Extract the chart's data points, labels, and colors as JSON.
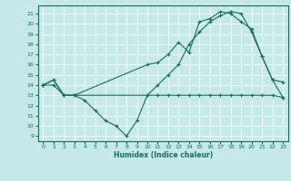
{
  "xlabel": "Humidex (Indice chaleur)",
  "xlim": [
    -0.5,
    23.5
  ],
  "ylim": [
    8.5,
    21.8
  ],
  "yticks": [
    9,
    10,
    11,
    12,
    13,
    14,
    15,
    16,
    17,
    18,
    19,
    20,
    21
  ],
  "xticks": [
    0,
    1,
    2,
    3,
    4,
    5,
    6,
    7,
    8,
    9,
    10,
    11,
    12,
    13,
    14,
    15,
    16,
    17,
    18,
    19,
    20,
    21,
    22,
    23
  ],
  "bg_color": "#c5e8e8",
  "line_color": "#1a6b5a",
  "series": [
    {
      "x": [
        0,
        1,
        2,
        3,
        4,
        5,
        6,
        7,
        8,
        9,
        10,
        11,
        12,
        13,
        14,
        15,
        16,
        17,
        18,
        19,
        20,
        21,
        22,
        23
      ],
      "y": [
        14,
        14.5,
        13,
        13,
        12.5,
        11.5,
        10.5,
        10,
        9,
        10.5,
        13,
        13,
        13,
        13,
        13,
        13,
        13,
        13,
        13,
        13,
        13,
        13,
        13,
        12.8
      ]
    },
    {
      "x": [
        0,
        1,
        2,
        3,
        10,
        11,
        12,
        13,
        14,
        15,
        16,
        17,
        18,
        19,
        20,
        21,
        22,
        23
      ],
      "y": [
        14,
        14.5,
        13,
        13,
        16,
        16.2,
        17,
        18.2,
        17.2,
        20.2,
        20.5,
        21.2,
        21,
        20.2,
        19.5,
        16.8,
        14.5,
        14.3
      ]
    },
    {
      "x": [
        0,
        1,
        2,
        3,
        10,
        11,
        12,
        13,
        14,
        15,
        16,
        17,
        18,
        19,
        20,
        21,
        22,
        23
      ],
      "y": [
        14,
        14,
        13,
        13,
        13,
        14,
        15,
        16,
        18,
        19.2,
        20.2,
        20.8,
        21.2,
        21,
        19.2,
        16.8,
        14.5,
        12.8
      ]
    }
  ]
}
